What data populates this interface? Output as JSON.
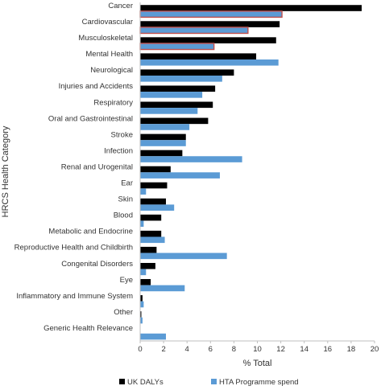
{
  "chart_data": {
    "type": "bar",
    "orientation": "horizontal",
    "xlabel": "% Total",
    "ylabel": "HRCS Health Category",
    "xlim": [
      0,
      20
    ],
    "xticks": [
      "0",
      "2",
      "4",
      "6",
      "8",
      "10",
      "12",
      "14",
      "16",
      "18",
      "20"
    ],
    "grid": false,
    "legend": "bottom",
    "categories": [
      "Cancer",
      "Cardiovascular",
      "Musculoskeletal",
      "Mental Health",
      "Neurological",
      "Injuries and Accidents",
      "Respiratory",
      "Oral and Gastrointestinal",
      "Stroke",
      "Infection",
      "Renal and Urogenital",
      "Ear",
      "Skin",
      "Blood",
      "Metabolic and Endocrine",
      "Reproductive Health and Childbirth",
      "Congenital Disorders",
      "Eye",
      "Inflammatory and Immune System",
      "Other",
      "Generic Health Relevance"
    ],
    "series": [
      {
        "name": "UK DALYs",
        "color": "#000000",
        "values": [
          18.9,
          11.9,
          11.6,
          9.9,
          8.0,
          6.4,
          6.2,
          5.8,
          3.9,
          3.6,
          2.6,
          2.3,
          2.2,
          1.8,
          1.8,
          1.4,
          1.3,
          0.9,
          0.2,
          0.1,
          0.0
        ]
      },
      {
        "name": "HTA Programme spend",
        "color": "#5b9bd5",
        "values": [
          12.1,
          9.2,
          6.3,
          11.8,
          7.0,
          5.3,
          4.9,
          4.2,
          3.9,
          8.7,
          6.8,
          0.5,
          2.9,
          0.3,
          2.1,
          7.4,
          0.5,
          3.8,
          0.3,
          0.2,
          2.2
        ]
      }
    ],
    "highlighted_categories": [
      "Cancer",
      "Cardiovascular",
      "Musculoskeletal"
    ],
    "highlight_color": "#c0504d"
  }
}
